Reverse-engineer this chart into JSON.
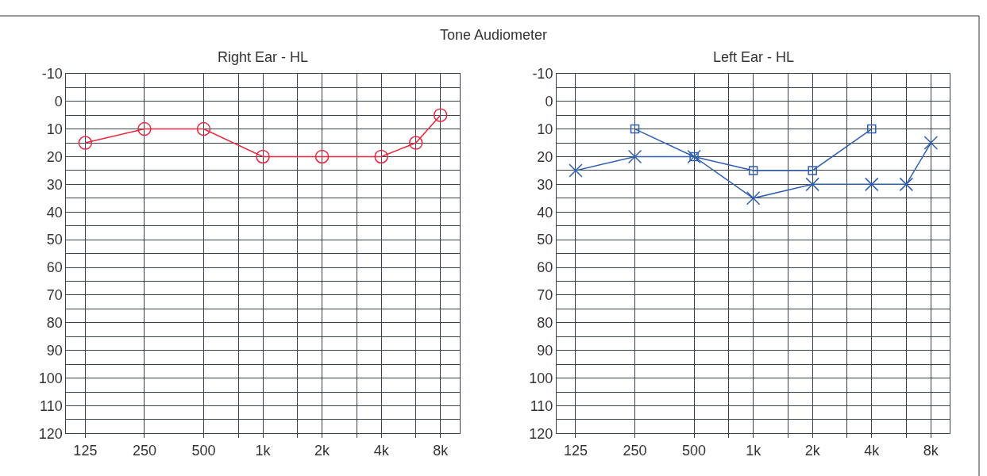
{
  "chart_data": [
    {
      "type": "line",
      "title": "Right Ear - HL",
      "annotations": [
        "Tone Audiometer"
      ],
      "xlim": [
        100,
        10000
      ],
      "log": "x",
      "xticks": [
        125,
        250,
        500,
        {
          "value": 750,
          "label": null
        },
        {
          "value": 1000,
          "label": "1k"
        },
        {
          "value": 1500,
          "label": null
        },
        {
          "value": 2000,
          "label": "2k"
        },
        {
          "value": 3000,
          "label": null
        },
        {
          "value": 4000,
          "label": "4k"
        },
        {
          "value": 6000,
          "label": null
        },
        {
          "value": 8000,
          "label": "8k"
        }
      ],
      "ylim": [
        120,
        -10
      ],
      "yticks": [
        -10,
        {
          "value": -5,
          "label": null
        },
        0,
        {
          "value": 5,
          "label": null
        },
        10,
        {
          "value": 15,
          "label": null
        },
        20,
        {
          "value": 25,
          "label": null
        },
        30,
        {
          "value": 35,
          "label": null
        },
        40,
        {
          "value": 45,
          "label": null
        },
        50,
        {
          "value": 55,
          "label": null
        },
        60,
        {
          "value": 65,
          "label": null
        },
        70,
        {
          "value": 75,
          "label": null
        },
        80,
        {
          "value": 85,
          "label": null
        },
        90,
        {
          "value": 95,
          "label": null
        },
        100,
        {
          "value": 105,
          "label": null
        },
        110,
        {
          "value": 115,
          "label": null
        },
        120
      ],
      "grid": true,
      "line_style": "solid",
      "series": [
        {
          "color": "#e8283c",
          "marker": "circle",
          "x": [
            125,
            250,
            500,
            1000,
            2000,
            4000,
            6000,
            8000
          ],
          "values": [
            15,
            10,
            10,
            20,
            20,
            20,
            15,
            5
          ]
        }
      ]
    },
    {
      "type": "line",
      "title": "Left Ear - HL",
      "xlim": [
        100,
        10000
      ],
      "log": "x",
      "xticks": [
        125,
        250,
        500,
        {
          "value": 750,
          "label": null
        },
        {
          "value": 1000,
          "label": "1k"
        },
        {
          "value": 1500,
          "label": null
        },
        {
          "value": 2000,
          "label": "2k"
        },
        {
          "value": 3000,
          "label": null
        },
        {
          "value": 4000,
          "label": "4k"
        },
        {
          "value": 6000,
          "label": null
        },
        {
          "value": 8000,
          "label": "8k"
        }
      ],
      "ylim": [
        120,
        -10
      ],
      "yticks": [
        -10,
        {
          "value": -5,
          "label": null
        },
        0,
        {
          "value": 5,
          "label": null
        },
        10,
        {
          "value": 15,
          "label": null
        },
        20,
        {
          "value": 25,
          "label": null
        },
        30,
        {
          "value": 35,
          "label": null
        },
        40,
        {
          "value": 45,
          "label": null
        },
        50,
        {
          "value": 55,
          "label": null
        },
        60,
        {
          "value": 65,
          "label": null
        },
        70,
        {
          "value": 75,
          "label": null
        },
        80,
        {
          "value": 85,
          "label": null
        },
        90,
        {
          "value": 95,
          "label": null
        },
        100,
        {
          "value": 105,
          "label": null
        },
        110,
        {
          "value": 115,
          "label": null
        },
        120
      ],
      "grid": true,
      "line_style": "solid",
      "series": [
        {
          "color": "#2f5fb3",
          "marker": "cross",
          "x": [
            125,
            250,
            500,
            1000,
            2000,
            4000,
            6000,
            8000
          ],
          "values": [
            25,
            20,
            20,
            35,
            30,
            30,
            30,
            15
          ]
        },
        {
          "color": "#2f5fb3",
          "marker": "square",
          "x": [
            250,
            500,
            1000,
            2000,
            4000
          ],
          "values": [
            10,
            20,
            25,
            25,
            10
          ]
        }
      ]
    }
  ]
}
